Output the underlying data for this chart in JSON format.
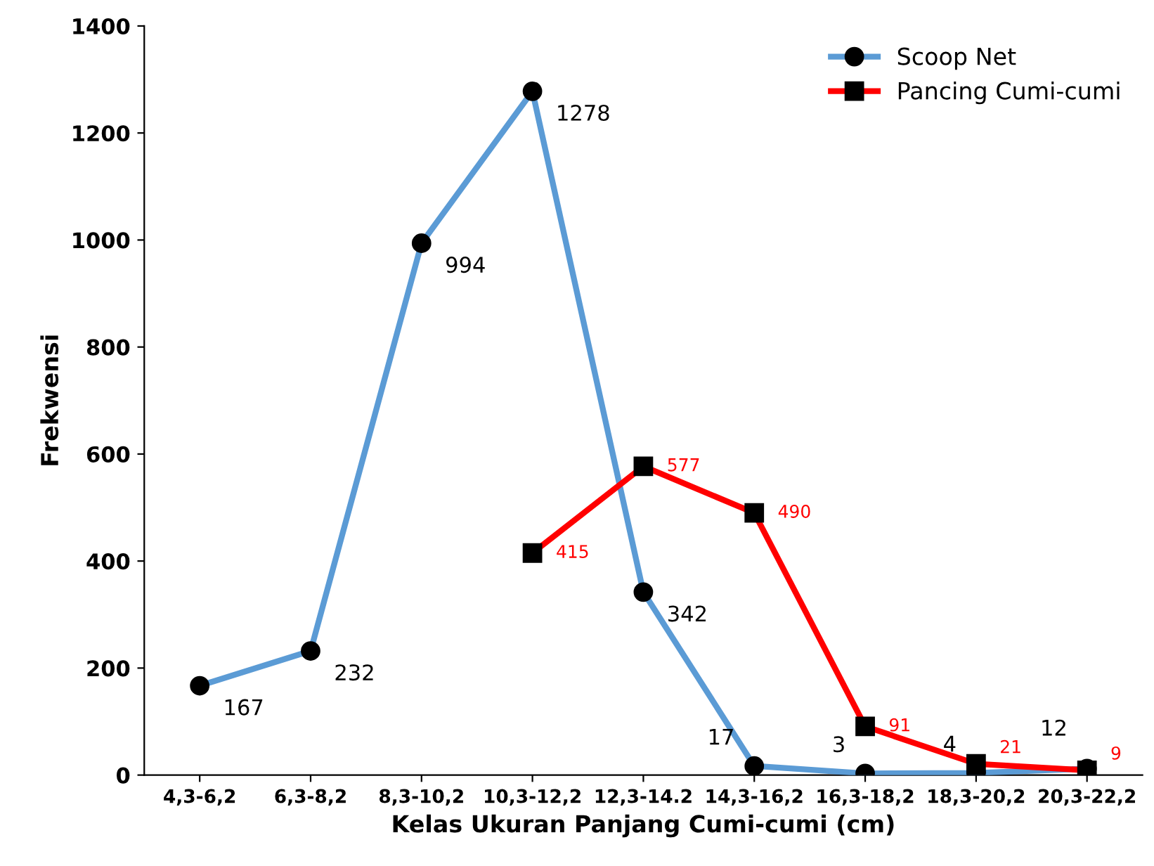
{
  "chart_data": {
    "type": "line",
    "xlabel": "Kelas Ukuran Panjang Cumi-cumi (cm)",
    "ylabel": "Frekwensi",
    "categories": [
      "4,3-6,2",
      "6,3-8,2",
      "8,3-10,2",
      "10,3-12,2",
      "12,3-14.2",
      "14,3-16,2",
      "16,3-18,2",
      "18,3-20,2",
      "20,3-22,2"
    ],
    "series": [
      {
        "name": "Scoop Net",
        "color": "#5b9bd5",
        "marker": "circle",
        "values": [
          167,
          232,
          994,
          1278,
          342,
          17,
          3,
          4,
          12
        ]
      },
      {
        "name": "Pancing Cumi-cumi",
        "color": "#ff0000",
        "marker": "square",
        "values": [
          null,
          null,
          null,
          415,
          577,
          490,
          91,
          21,
          9
        ]
      }
    ],
    "ylim": [
      0,
      1400
    ],
    "yticks": [
      0,
      200,
      400,
      600,
      800,
      1000,
      1200,
      1400
    ],
    "grid": false,
    "legend": "top right",
    "data_labels": true,
    "line_style": "solid"
  }
}
